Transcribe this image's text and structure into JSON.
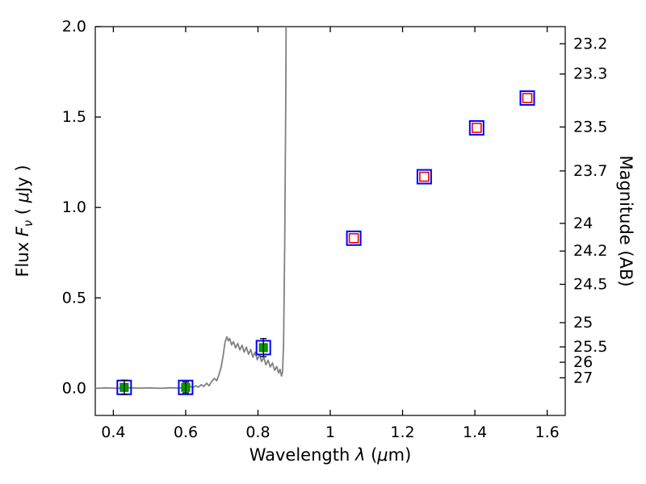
{
  "figure": {
    "background": "#ffffff"
  },
  "colors": {
    "spectrum_line": "#808080",
    "band_box": "#0000ff",
    "detected_point": "#00a000",
    "model_photometry": "#ee0000",
    "axis": "#000000"
  },
  "chart_data": {
    "type": "line+scatter",
    "title": "",
    "xlabel_parts": {
      "pre": "Wavelength ",
      "symbol": "λ",
      "mid": " (",
      "mu": "μ",
      "post": "m)"
    },
    "ylabel_left_parts": {
      "pre": "Flux ",
      "symbol": "F",
      "sub": "ν",
      "mid": " ( ",
      "mu": "μ",
      "post": "Jy )"
    },
    "ylabel_right": "Magnitude (AB)",
    "xlim": [
      0.35,
      1.65
    ],
    "ylim": [
      -0.15,
      2.0
    ],
    "grid": false,
    "x_ticks": [
      0.4,
      0.6,
      0.8,
      1.0,
      1.2,
      1.4,
      1.6
    ],
    "x_tick_labels": [
      "0.4",
      "0.6",
      "0.8",
      "1",
      "1.2",
      "1.4",
      "1.6"
    ],
    "y_ticks_left": [
      0.0,
      0.5,
      1.0,
      1.5,
      2.0
    ],
    "y_tick_labels_left": [
      "0.0",
      "0.5",
      "1.0",
      "1.5",
      "2.0"
    ],
    "right_axis": {
      "label": "Magnitude (AB)",
      "ticks": [
        {
          "label": "23.2",
          "flux": 1.905
        },
        {
          "label": "23.3",
          "flux": 1.738
        },
        {
          "label": "23.5",
          "flux": 1.445
        },
        {
          "label": "23.7",
          "flux": 1.202
        },
        {
          "label": "24",
          "flux": 0.912
        },
        {
          "label": "24.2",
          "flux": 0.759
        },
        {
          "label": "24.5",
          "flux": 0.575
        },
        {
          "label": "25",
          "flux": 0.363
        },
        {
          "label": "25.5",
          "flux": 0.229
        },
        {
          "label": "26",
          "flux": 0.144
        },
        {
          "label": "27",
          "flux": 0.058
        }
      ]
    },
    "series": [
      {
        "name": "model-spectrum",
        "type": "line",
        "color": "#808080",
        "lw": 1.8,
        "x": [
          0.35,
          0.38,
          0.41,
          0.44,
          0.47,
          0.5,
          0.53,
          0.56,
          0.58,
          0.595,
          0.605,
          0.613,
          0.62,
          0.628,
          0.635,
          0.643,
          0.65,
          0.658,
          0.665,
          0.672,
          0.679,
          0.686,
          0.692,
          0.698,
          0.704,
          0.709,
          0.714,
          0.718,
          0.722,
          0.727,
          0.732,
          0.738,
          0.744,
          0.75,
          0.756,
          0.762,
          0.768,
          0.774,
          0.78,
          0.786,
          0.792,
          0.798,
          0.804,
          0.81,
          0.816,
          0.822,
          0.828,
          0.834,
          0.84,
          0.846,
          0.852,
          0.857,
          0.861,
          0.865,
          0.868,
          0.871,
          0.874,
          0.877,
          0.879
        ],
        "y": [
          0.0,
          0.002,
          0.0,
          0.003,
          0.001,
          0.002,
          0.0,
          0.003,
          0.001,
          0.004,
          0.002,
          0.01,
          0.004,
          0.014,
          0.006,
          0.02,
          0.01,
          0.028,
          0.014,
          0.038,
          0.055,
          0.042,
          0.075,
          0.115,
          0.185,
          0.255,
          0.285,
          0.262,
          0.275,
          0.24,
          0.258,
          0.224,
          0.248,
          0.212,
          0.238,
          0.2,
          0.228,
          0.188,
          0.215,
          0.172,
          0.2,
          0.158,
          0.188,
          0.148,
          0.172,
          0.13,
          0.155,
          0.118,
          0.14,
          0.1,
          0.12,
          0.085,
          0.105,
          0.068,
          0.09,
          0.25,
          0.8,
          1.6,
          2.5
        ]
      },
      {
        "name": "band-boxes",
        "type": "scatter",
        "marker": "open-square",
        "color": "#0000ff",
        "lw": 2,
        "size": 17,
        "points": [
          {
            "x": 0.43,
            "y": 0.005
          },
          {
            "x": 0.6,
            "y": 0.005
          },
          {
            "x": 0.815,
            "y": 0.225
          },
          {
            "x": 1.065,
            "y": 0.83
          },
          {
            "x": 1.26,
            "y": 1.17
          },
          {
            "x": 1.405,
            "y": 1.44
          },
          {
            "x": 1.545,
            "y": 1.605
          }
        ]
      },
      {
        "name": "detected-flux",
        "type": "scatter",
        "marker": "filled-square",
        "color": "#00a000",
        "edge": "#007000",
        "size": 10,
        "err_color": "#111111",
        "points": [
          {
            "x": 0.43,
            "y": 0.005,
            "yerr": 0.04
          },
          {
            "x": 0.6,
            "y": 0.005,
            "yerr": 0.03
          },
          {
            "x": 0.815,
            "y": 0.225,
            "yerr": 0.05
          }
        ]
      },
      {
        "name": "model-photometry",
        "type": "scatter",
        "marker": "open-square",
        "color": "#ee0000",
        "lw": 1.6,
        "size": 11,
        "points": [
          {
            "x": 1.065,
            "y": 0.83
          },
          {
            "x": 1.26,
            "y": 1.17
          },
          {
            "x": 1.405,
            "y": 1.44
          },
          {
            "x": 1.545,
            "y": 1.605
          }
        ]
      }
    ]
  }
}
